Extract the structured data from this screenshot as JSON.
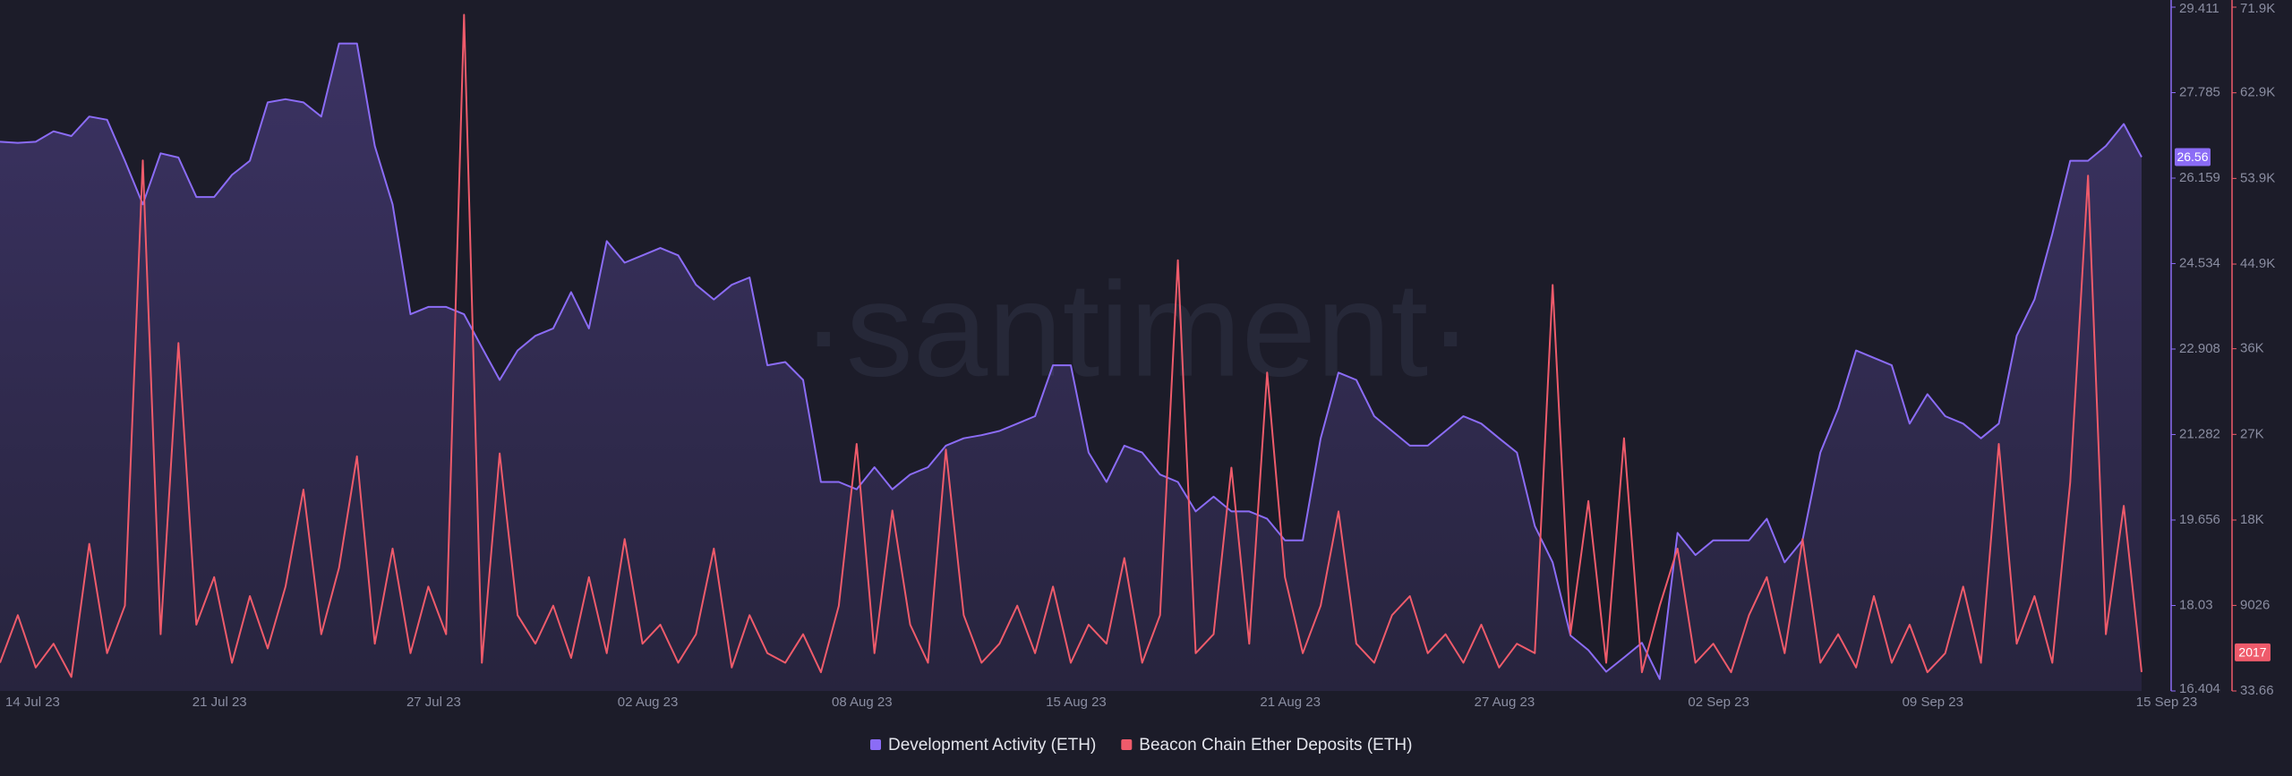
{
  "chart_data": {
    "type": "line",
    "watermark": "·santiment·",
    "categories": [
      "14 Jul 23",
      null,
      null,
      null,
      null,
      null,
      null,
      null,
      null,
      null,
      null,
      null,
      "21 Jul 23",
      null,
      null,
      null,
      null,
      null,
      null,
      null,
      null,
      null,
      null,
      null,
      "27 Jul 23",
      null,
      null,
      null,
      null,
      null,
      null,
      null,
      null,
      null,
      null,
      null,
      "02 Aug 23",
      null,
      null,
      null,
      null,
      null,
      null,
      null,
      null,
      null,
      null,
      null,
      "08 Aug 23",
      null,
      null,
      null,
      null,
      null,
      null,
      null,
      null,
      null,
      null,
      null,
      "15 Aug 23",
      null,
      null,
      null,
      null,
      null,
      null,
      null,
      null,
      null,
      null,
      null,
      "21 Aug 23",
      null,
      null,
      null,
      null,
      null,
      null,
      null,
      null,
      null,
      null,
      null,
      "27 Aug 23",
      null,
      null,
      null,
      null,
      null,
      null,
      null,
      null,
      null,
      null,
      null,
      "02 Sep 23",
      null,
      null,
      null,
      null,
      null,
      null,
      null,
      null,
      null,
      null,
      null,
      "09 Sep 23",
      null,
      null,
      null,
      null,
      null,
      null,
      null,
      null,
      null,
      null,
      null,
      "15 Sep 23"
    ],
    "series": [
      {
        "name": "Development Activity (ETH)",
        "color": "#8b6cf6",
        "area": true,
        "values": [
          26.85,
          26.83,
          26.85,
          27.05,
          26.96,
          27.33,
          27.27,
          26.49,
          25.66,
          26.63,
          26.55,
          25.8,
          25.8,
          26.22,
          26.49,
          27.6,
          27.66,
          27.6,
          27.33,
          28.72,
          28.72,
          26.77,
          25.66,
          23.57,
          23.71,
          23.71,
          23.57,
          22.94,
          22.32,
          22.88,
          23.16,
          23.3,
          23.99,
          23.3,
          24.96,
          24.55,
          24.69,
          24.83,
          24.69,
          24.13,
          23.85,
          24.13,
          24.27,
          22.6,
          22.66,
          22.32,
          20.38,
          20.38,
          20.24,
          20.66,
          20.24,
          20.52,
          20.66,
          21.07,
          21.21,
          21.27,
          21.35,
          21.49,
          21.63,
          22.6,
          22.6,
          20.94,
          20.38,
          21.07,
          20.94,
          20.52,
          20.38,
          19.82,
          20.1,
          19.82,
          19.82,
          19.68,
          19.27,
          19.27,
          21.21,
          22.46,
          22.32,
          21.63,
          21.35,
          21.07,
          21.07,
          21.35,
          21.63,
          21.49,
          21.21,
          20.94,
          19.54,
          18.85,
          17.46,
          17.18,
          16.77,
          17.04,
          17.32,
          16.63,
          19.41,
          18.99,
          19.27,
          19.27,
          19.27,
          19.68,
          18.85,
          19.27,
          20.94,
          21.77,
          22.88,
          22.74,
          22.6,
          21.49,
          22.05,
          21.63,
          21.49,
          21.21,
          21.49,
          23.16,
          23.85,
          25.1,
          26.49,
          26.49,
          26.77,
          27.19,
          26.56
        ]
      },
      {
        "name": "Beacon Chain Ether Deposits (ETH)",
        "color": "#ef5b6b",
        "axis": "y2",
        "values": [
          3000,
          8000,
          2500,
          5000,
          1500,
          15500,
          4000,
          9000,
          55800,
          6000,
          36600,
          7000,
          12000,
          3000,
          10000,
          4500,
          11000,
          21200,
          6000,
          13000,
          24700,
          5000,
          15000,
          4000,
          11000,
          6000,
          71100,
          3000,
          25000,
          8000,
          5000,
          9000,
          3500,
          12000,
          4000,
          16000,
          5000,
          7000,
          3000,
          6000,
          15000,
          2500,
          8000,
          4000,
          3000,
          6000,
          2000,
          9000,
          26000,
          4000,
          19000,
          7000,
          3000,
          25400,
          8000,
          3000,
          5000,
          9000,
          4000,
          11000,
          3000,
          7000,
          5000,
          14000,
          3000,
          8000,
          45300,
          4000,
          6000,
          23500,
          5000,
          33500,
          12000,
          4000,
          9000,
          18900,
          5000,
          3000,
          8000,
          10000,
          4000,
          6000,
          3000,
          7000,
          2500,
          5000,
          4000,
          42700,
          6000,
          20000,
          3000,
          26600,
          2000,
          9000,
          15000,
          3000,
          5000,
          2000,
          8000,
          12000,
          4000,
          16000,
          3000,
          6000,
          2500,
          10000,
          3000,
          7000,
          2000,
          4000,
          11000,
          3000,
          26000,
          5000,
          10000,
          3000,
          22000,
          54200,
          6000,
          19500,
          2017
        ]
      }
    ],
    "ylim": [
      16.404,
      29.411
    ],
    "yticks": [
      16.404,
      18.03,
      19.656,
      21.282,
      22.908,
      24.534,
      26.159,
      27.785,
      29.411
    ],
    "y2lim": [
      33.66,
      71900
    ],
    "y2ticks": [
      33.66,
      9026,
      {
        "value": 18000,
        "label": "18K"
      },
      {
        "value": 27000,
        "label": "27K"
      },
      {
        "value": 36000,
        "label": "36K"
      },
      {
        "value": 44900,
        "label": "44.9K"
      },
      {
        "value": 53900,
        "label": "53.9K"
      },
      {
        "value": 62900,
        "label": "62.9K"
      },
      {
        "value": 71900,
        "label": "71.9K"
      }
    ],
    "legend": "bottom"
  }
}
